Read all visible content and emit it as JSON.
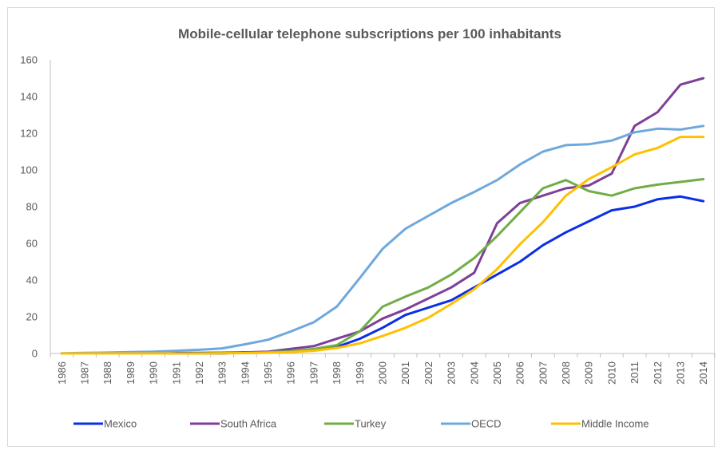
{
  "chart_data": {
    "type": "line",
    "title": "Mobile-cellular telephone subscriptions per 100 inhabitants",
    "xlabel": "",
    "ylabel": "",
    "ylim": [
      0,
      160
    ],
    "yticks": [
      0,
      20,
      40,
      60,
      80,
      100,
      120,
      140,
      160
    ],
    "grid": false,
    "legend_position": "bottom",
    "x": [
      "1986",
      "1987",
      "1988",
      "1989",
      "1990",
      "1991",
      "1992",
      "1993",
      "1994",
      "1995",
      "1996",
      "1997",
      "1998",
      "1999",
      "2000",
      "2001",
      "2002",
      "2003",
      "2004",
      "2005",
      "2006",
      "2007",
      "2008",
      "2009",
      "2010",
      "2011",
      "2012",
      "2013",
      "2014"
    ],
    "series": [
      {
        "name": "Mexico",
        "color": "#0a2fe6",
        "values": [
          0,
          0,
          0,
          0,
          0.1,
          0.2,
          0.3,
          0.4,
          0.6,
          0.7,
          1.1,
          1.8,
          3.5,
          8,
          14,
          21,
          25,
          29,
          36,
          43,
          50,
          59,
          66,
          72,
          78,
          80,
          84,
          85.5,
          83
        ]
      },
      {
        "name": "South Africa",
        "color": "#7f3f98",
        "values": [
          0,
          0,
          0,
          0,
          0,
          0,
          0,
          0,
          0.6,
          1,
          2.5,
          4,
          8,
          12,
          19,
          24,
          30,
          36,
          44,
          71,
          82,
          86,
          90,
          91.5,
          98,
          124,
          131.5,
          146.5,
          150
        ]
      },
      {
        "name": "Turkey",
        "color": "#70ad47",
        "values": [
          0,
          0,
          0,
          0,
          0,
          0,
          0.1,
          0.2,
          0.3,
          0.7,
          1.2,
          2.5,
          4.5,
          12,
          25.5,
          31,
          36,
          43,
          52,
          64,
          77,
          90,
          94.5,
          88.5,
          86,
          90,
          92,
          93.5,
          95
        ]
      },
      {
        "name": "OECD",
        "color": "#6fa8dc",
        "values": [
          0.1,
          0.3,
          0.5,
          0.8,
          1,
          1.5,
          2,
          2.8,
          5,
          7.5,
          12,
          17,
          25.5,
          41,
          57,
          68,
          75,
          82,
          88,
          94.5,
          103,
          110,
          113.5,
          114,
          116,
          120.5,
          122.5,
          122,
          124
        ]
      },
      {
        "name": "Middle Income",
        "color": "#ffc000",
        "values": [
          0,
          0,
          0,
          0,
          0,
          0,
          0,
          0.1,
          0.2,
          0.4,
          0.8,
          1.5,
          3,
          5.5,
          9.5,
          14,
          19.5,
          27,
          35,
          46,
          59.5,
          71.5,
          86,
          95,
          101.5,
          108.5,
          112,
          118,
          118
        ]
      }
    ]
  }
}
